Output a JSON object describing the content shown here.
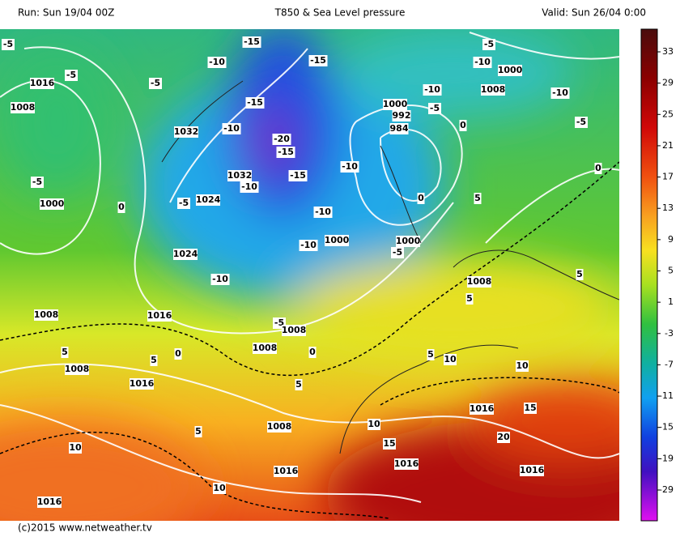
{
  "header": {
    "run": "Run: Sun 19/04 00Z",
    "title": "T850 & Sea Level pressure",
    "valid": "Valid: Sun 26/04 0:00"
  },
  "colorbar": {
    "ticks": [
      33,
      29,
      25,
      21,
      17,
      13,
      9,
      5,
      1,
      -3,
      -7,
      -11,
      -15,
      -19,
      -29
    ]
  },
  "contour_labels": [
    -5,
    -15,
    -15,
    -5,
    -10,
    -10,
    1000,
    -5,
    1016,
    -5,
    -10,
    1008,
    -10,
    -15,
    1000,
    -5,
    1008,
    992,
    0,
    -10,
    1032,
    -20,
    984,
    -5,
    -15,
    -10,
    -5,
    1032,
    -15,
    -10,
    0,
    1024,
    -5,
    1000,
    0,
    0,
    5,
    -10,
    1000,
    1000,
    -10,
    -5,
    1024,
    -10,
    1008,
    5,
    5,
    1008,
    1016,
    -5,
    1008,
    0,
    1008,
    0,
    5,
    5,
    10,
    5,
    10,
    1008,
    1016,
    5,
    1016,
    15,
    1008,
    10,
    5,
    20,
    15,
    10,
    1016,
    1016,
    1016,
    10,
    1016
  ],
  "footer": "(c)2015 www.netweather.tv"
}
